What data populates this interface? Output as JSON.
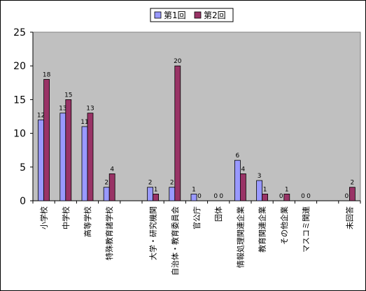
{
  "chart_data": {
    "type": "bar",
    "categories": [
      "小学校",
      "中学校",
      "高等学校",
      "特殊教育諸学校",
      "",
      "大学・研究機関",
      "自治体・教育委員会",
      "官公庁",
      "団体",
      "情報処理関連企業",
      "教育関連企業",
      "その他企業",
      "マスコミ関連",
      "",
      "未回答"
    ],
    "series": [
      {
        "name": "第1回",
        "values": [
          12,
          13,
          11,
          2,
          null,
          2,
          2,
          1,
          0,
          6,
          3,
          0,
          0,
          null,
          0
        ]
      },
      {
        "name": "第2回",
        "values": [
          18,
          15,
          13,
          4,
          null,
          1,
          20,
          0,
          0,
          4,
          1,
          1,
          0,
          null,
          2
        ]
      }
    ],
    "y_ticks": [
      "0",
      "5",
      "10",
      "15",
      "20",
      "25"
    ],
    "ylim": [
      0,
      25
    ],
    "grid": false,
    "legend_position": "top-center",
    "colors": {
      "series1": "#9999FF",
      "series2": "#993366",
      "plot_background": "#C0C0C0"
    }
  }
}
